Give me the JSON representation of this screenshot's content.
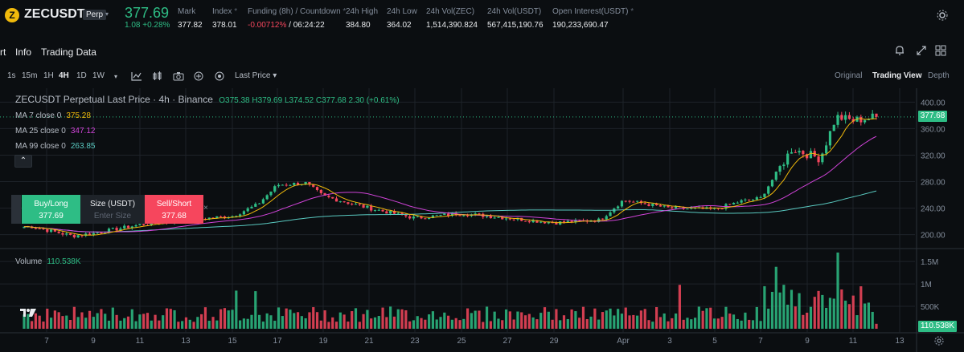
{
  "header": {
    "coin_icon": "Z",
    "symbol": "ZECUSDT",
    "badge": "Perp",
    "caret": "▾",
    "last_price": "377.69",
    "change": "1.08 +0.28%",
    "stats": [
      {
        "label": "Mark",
        "value": "377.82"
      },
      {
        "label": "Index",
        "value": "378.01",
        "info": true
      },
      {
        "label": "Funding (8h) / Countdown",
        "value": "-0.00712%",
        "value2": "/ 06:24:22",
        "info": true
      },
      {
        "label": "24h High",
        "value": "384.80"
      },
      {
        "label": "24h Low",
        "value": "364.02"
      },
      {
        "label": "24h Vol(ZEC)",
        "value": "1,514,390.824"
      },
      {
        "label": "24h Vol(USDT)",
        "value": "567,415,190.76"
      },
      {
        "label": "Open Interest(USDT)",
        "value": "190,233,690.47",
        "info": true
      }
    ]
  },
  "tabs": [
    "rt",
    "Info",
    "Trading Data"
  ],
  "toolbar": {
    "intervals": [
      "1s",
      "15m",
      "1H",
      "4H",
      "1D",
      "1W"
    ],
    "active_interval": "4H",
    "price_type": "Last Price ▾",
    "views": [
      "Original",
      "Trading View",
      "Depth"
    ],
    "active_view": "Trading View"
  },
  "chart_legend": {
    "title": "ZECUSDT Perpetual Last Price · 4h · Binance",
    "ohlc": "O375.38 H379.69 L374.52 C377.68 2.30 (+0.61%)",
    "ma7_label": "MA 7 close 0",
    "ma7_value": "375.28",
    "ma25_label": "MA 25 close 0",
    "ma25_value": "347.12",
    "ma99_label": "MA 99 close 0",
    "ma99_value": "263.85",
    "volume_label": "Volume",
    "volume_value": "110.538K"
  },
  "order_panel": {
    "buy_label": "Buy/Long",
    "buy_price": "377.69",
    "size_label": "Size (USDT)",
    "size_placeholder": "Enter Size",
    "sell_label": "Sell/Short",
    "sell_price": "377.68",
    "close": "×"
  },
  "price_axis": [
    "400.00",
    "360.00",
    "320.00",
    "280.00",
    "240.00",
    "200.00"
  ],
  "volume_axis": [
    "1.5M",
    "1M",
    "500K"
  ],
  "date_axis": [
    "7",
    "9",
    "11",
    "13",
    "15",
    "17",
    "19",
    "21",
    "23",
    "25",
    "27",
    "29",
    "Apr",
    "3",
    "5",
    "7",
    "9",
    "11",
    "13"
  ],
  "last_price_tag": "377.68",
  "last_volume_tag": "110.538K",
  "colors": {
    "up": "#2ebd85",
    "down": "#f6465d",
    "ma7": "#f0b90b",
    "ma25": "#d043d8",
    "ma99": "#59c9c0"
  },
  "chart_data": {
    "type": "candlestick",
    "title": "ZECUSDT Perpetual Last Price · 4h · Binance",
    "interval": "4h",
    "y_range": [
      185,
      415
    ],
    "volume_range": [
      0,
      1700000
    ],
    "x_start": "Mar 7",
    "x_end": "Apr 13",
    "x_labels": [
      "7",
      "9",
      "11",
      "13",
      "15",
      "17",
      "19",
      "21",
      "23",
      "25",
      "27",
      "29",
      "Apr",
      "3",
      "5",
      "7",
      "9",
      "11",
      "13"
    ],
    "close_series": [
      {
        "date": "Mar 7",
        "close": 212
      },
      {
        "date": "Mar 8",
        "close": 198
      },
      {
        "date": "Mar 9",
        "close": 202
      },
      {
        "date": "Mar 11",
        "close": 215
      },
      {
        "date": "Mar 13",
        "close": 222
      },
      {
        "date": "Mar 15",
        "close": 228
      },
      {
        "date": "Mar 16",
        "close": 245
      },
      {
        "date": "Mar 17",
        "close": 275
      },
      {
        "date": "Mar 18",
        "close": 278
      },
      {
        "date": "Mar 19",
        "close": 258
      },
      {
        "date": "Mar 21",
        "close": 240
      },
      {
        "date": "Mar 23",
        "close": 225
      },
      {
        "date": "Mar 25",
        "close": 232
      },
      {
        "date": "Mar 27",
        "close": 225
      },
      {
        "date": "Mar 29",
        "close": 218
      },
      {
        "date": "Mar 31",
        "close": 222
      },
      {
        "date": "Apr 1",
        "close": 252
      },
      {
        "date": "Apr 3",
        "close": 240
      },
      {
        "date": "Apr 5",
        "close": 238
      },
      {
        "date": "Apr 6",
        "close": 250
      },
      {
        "date": "Apr 7",
        "close": 255
      },
      {
        "date": "Apr 8",
        "close": 330
      },
      {
        "date": "Apr 9",
        "close": 315
      },
      {
        "date": "Apr 10",
        "close": 378
      },
      {
        "date": "Apr 11",
        "close": 372
      },
      {
        "date": "Apr 12",
        "close": 377.68
      }
    ],
    "ma7_last": 375.28,
    "ma25_last": 347.12,
    "ma99_last": 263.85,
    "last_close": 377.68,
    "last_volume": 110538
  }
}
